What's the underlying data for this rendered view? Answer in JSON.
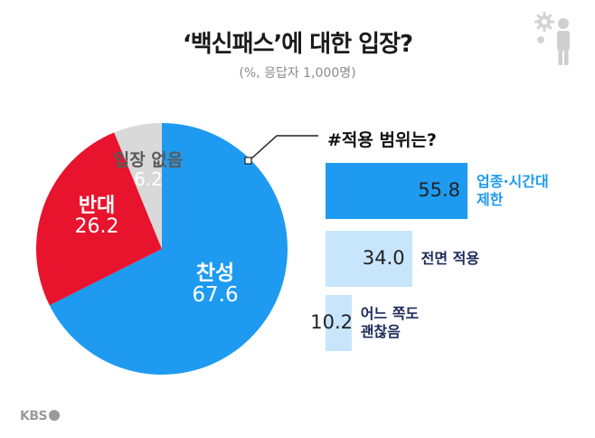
{
  "header": {
    "title": "‘백신패스’에 대한 입장?",
    "subtitle": "(%, 응답자 1,000명)"
  },
  "chart_data": [
    {
      "type": "pie",
      "categories": [
        "찬성",
        "반대",
        "입장 없음"
      ],
      "values": [
        67.6,
        26.2,
        6.2
      ],
      "value_labels": [
        "67.6",
        "26.2",
        "6.2"
      ],
      "colors": [
        "#1e9bf0",
        "#e8132c",
        "#d9d9d9"
      ],
      "title": ""
    },
    {
      "type": "bar",
      "orientation": "horizontal",
      "title": "#적용 범위는?",
      "categories": [
        "업종·시간대 제한",
        "전면 적용",
        "어느 쪽도 괜찮음"
      ],
      "category_lines": [
        [
          "업종·시간대",
          "제한"
        ],
        [
          "전면 적용"
        ],
        [
          "어느 쪽도",
          "괜찮음"
        ]
      ],
      "values": [
        55.8,
        34.0,
        10.2
      ],
      "value_labels": [
        "55.8",
        "34.0",
        "10.2"
      ],
      "colors": [
        "#1e9bf0",
        "#c8e6fb",
        "#c8e6fb"
      ],
      "label_colors": [
        "#1e9bf0",
        "#1a2a5a",
        "#1a2a5a"
      ],
      "xlim": [
        0,
        55.8
      ]
    }
  ],
  "icons": [
    "gear-icon",
    "person-icon"
  ],
  "footer": {
    "logo": "KBS"
  }
}
